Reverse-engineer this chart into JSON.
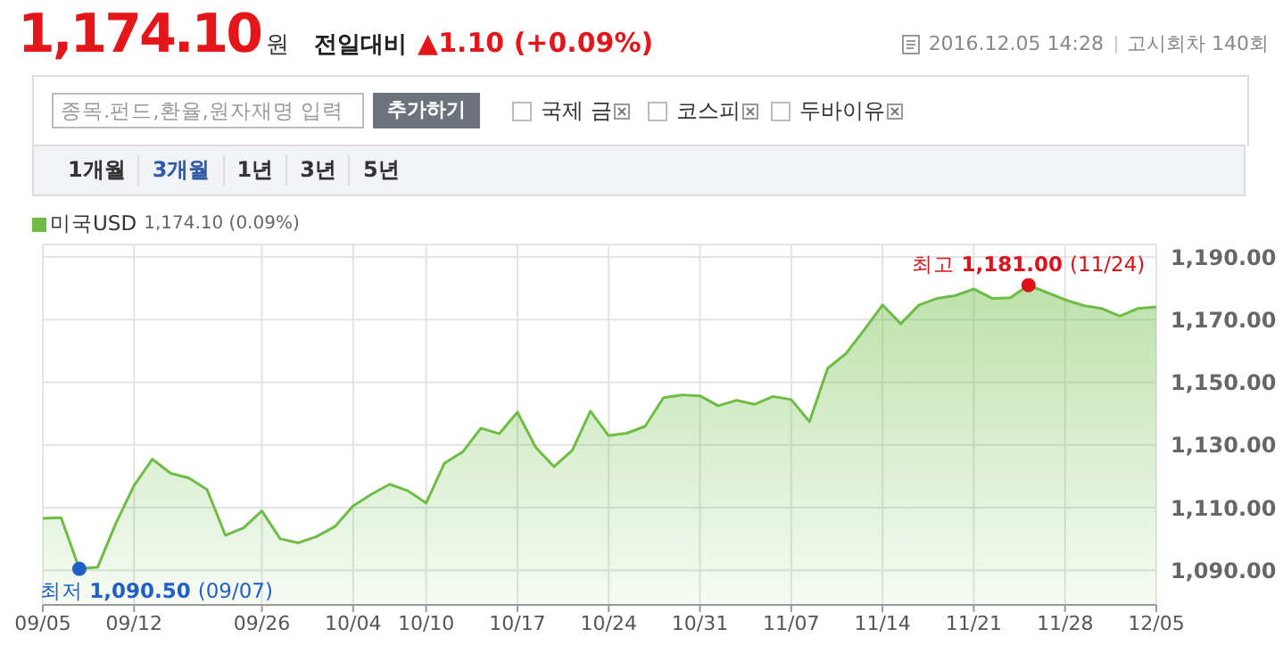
{
  "chart_data": {
    "type": "area",
    "title": "1,174.10원",
    "subtitle": "전일대비 ▲1.10 (+0.09%)",
    "categories": [
      "09/05",
      null,
      null,
      null,
      null,
      "09/12",
      null,
      null,
      null,
      null,
      null,
      null,
      "09/26",
      null,
      null,
      null,
      null,
      "10/04",
      null,
      null,
      null,
      "10/10",
      null,
      null,
      null,
      null,
      "10/17",
      null,
      null,
      null,
      null,
      "10/24",
      null,
      null,
      null,
      null,
      "10/31",
      null,
      null,
      null,
      null,
      "11/07",
      null,
      null,
      null,
      null,
      "11/14",
      null,
      null,
      null,
      null,
      "11/21",
      null,
      null,
      null,
      null,
      "11/28",
      null,
      null,
      null,
      null,
      "12/05"
    ],
    "series": [
      {
        "name": "미국USD",
        "color": "#6dbd45",
        "values": [
          1106.6,
          1106.8,
          1090.5,
          1091,
          1105,
          1117.1,
          1125.5,
          1121,
          1119.5,
          1115.8,
          1101.2,
          1103.6,
          1109,
          1100.1,
          1098.8,
          1100.8,
          1104,
          1110.6,
          1114.3,
          1117.5,
          1115.4,
          1111.5,
          1124.2,
          1127.8,
          1135.4,
          1133.6,
          1140.5,
          1129.3,
          1123.1,
          1128.3,
          1140.8,
          1133,
          1133.8,
          1136,
          1145.1,
          1146,
          1145.7,
          1142.5,
          1144.3,
          1143,
          1145.5,
          1144.5,
          1137.5,
          1154.5,
          1159.2,
          1166.8,
          1174.7,
          1168.7,
          1174.7,
          1176.8,
          1177.7,
          1179.8,
          1176.8,
          1177,
          1181,
          1178.7,
          1176.4,
          1174.5,
          1173.6,
          1171.1,
          1173.6,
          1174.1
        ]
      }
    ],
    "ylim": [
      1079,
      1194
    ],
    "yticks": [
      {
        "value": 1090,
        "label": "1,090.00"
      },
      {
        "value": 1110,
        "label": "1,110.00"
      },
      {
        "value": 1130,
        "label": "1,130.00"
      },
      {
        "value": 1150,
        "label": "1,150.00"
      },
      {
        "value": 1170,
        "label": "1,170.00"
      },
      {
        "value": 1190,
        "label": "1,190.00"
      }
    ],
    "grid": true,
    "legend": "top left",
    "annotations": [
      "2016.12.05 14:28",
      "고시회차 140회",
      "종목.펀드,환율,원자재명 입력",
      "추가하기",
      "국제 금",
      "코스피",
      "두바이유",
      "1개월",
      "3개월",
      "1년",
      "3년",
      "5년",
      "1,174.10 (0.09%)",
      {
        "text": "최고 1,181.00 (11/24)",
        "y": 1181
      },
      "최저 1,090.50 (09/07)"
    ]
  }
}
